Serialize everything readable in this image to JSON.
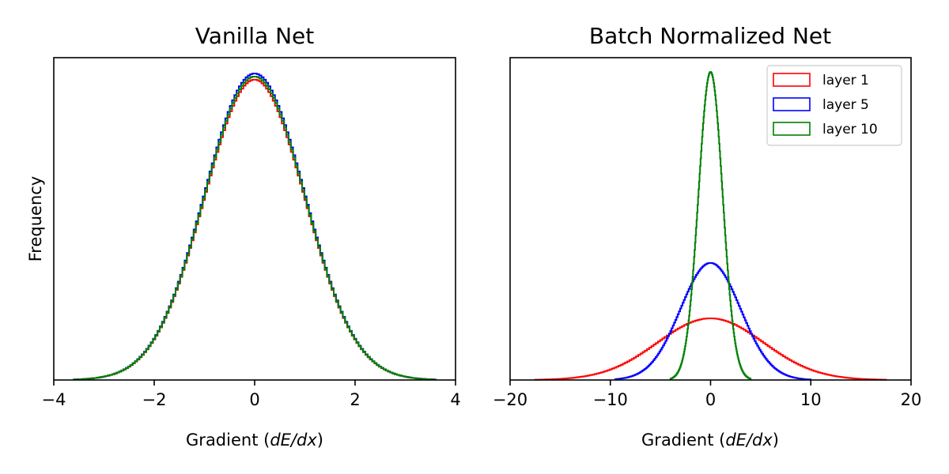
{
  "chart_data": [
    {
      "type": "line",
      "title": "Vanilla Net",
      "xlabel": "Gradient (dE/dx)",
      "ylabel": "Frequency",
      "xlim": [
        -4,
        4
      ],
      "xticks": [
        "−4",
        "−2",
        "0",
        "2",
        "4"
      ],
      "yticks_shown": false,
      "grid": false,
      "legend": null,
      "series": [
        {
          "color": "#ff0000",
          "distribution": "normal",
          "mean": 0,
          "std": 1.0,
          "x_range": [
            -3.6,
            3.6
          ],
          "relative_peak": 0.98
        },
        {
          "color": "#0000ff",
          "distribution": "normal",
          "mean": 0,
          "std": 1.0,
          "x_range": [
            -3.6,
            3.6
          ],
          "relative_peak": 1.0
        },
        {
          "color": "#008000",
          "distribution": "normal",
          "mean": 0,
          "std": 1.0,
          "x_range": [
            -3.6,
            3.6
          ],
          "relative_peak": 0.99
        }
      ]
    },
    {
      "type": "line",
      "title": "Batch Normalized Net",
      "xlabel": "Gradient (dE/dx)",
      "ylabel": "",
      "xlim": [
        -20,
        20
      ],
      "xticks": [
        "−20",
        "−10",
        "0",
        "10",
        "20"
      ],
      "yticks_shown": false,
      "grid": false,
      "legend": "top-right",
      "series": [
        {
          "name": "layer 1",
          "color": "#ff0000",
          "distribution": "normal",
          "mean": 0,
          "std": 5.3,
          "x_range": [
            -17.5,
            17.5
          ],
          "relative_peak": 0.2
        },
        {
          "name": "layer 5",
          "color": "#0000ff",
          "distribution": "normal",
          "mean": 0,
          "std": 3.0,
          "x_range": [
            -9.5,
            10
          ],
          "relative_peak": 0.38
        },
        {
          "name": "layer 10",
          "color": "#008000",
          "distribution": "normal",
          "mean": 0,
          "std": 1.2,
          "x_range": [
            -4,
            4
          ],
          "relative_peak": 1.0
        }
      ]
    }
  ]
}
